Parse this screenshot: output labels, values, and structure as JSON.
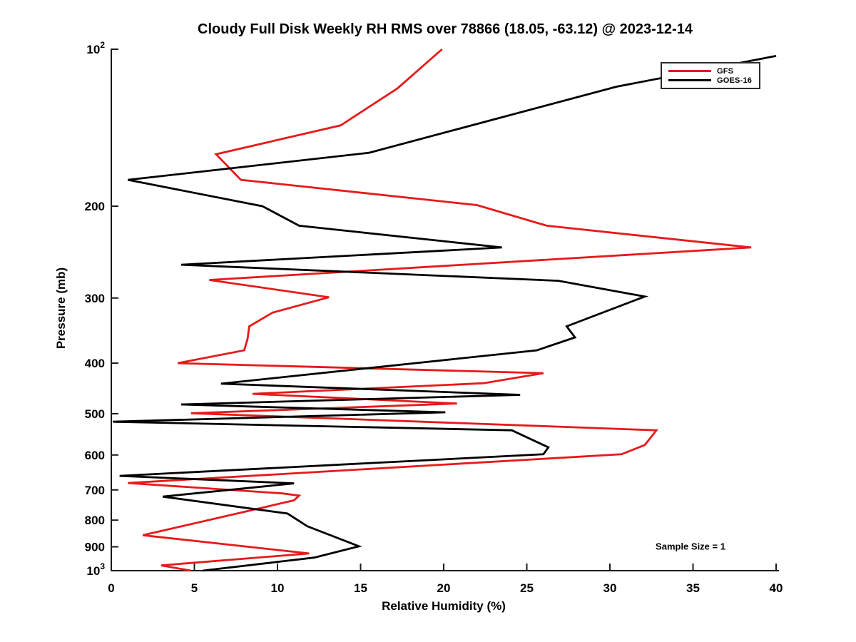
{
  "chart_data": {
    "type": "line",
    "title": "Cloudy Full Disk Weekly RH RMS over 78866 (18.05, -63.12) @ 2023-12-14",
    "xlabel": "Relative Humidity (%)",
    "ylabel": "Pressure (mb)",
    "xlim": [
      0,
      40
    ],
    "ylim": [
      100,
      1000
    ],
    "y_scale": "log",
    "y_axis_inverted": true,
    "grid": false,
    "x_ticks": [
      0,
      5,
      10,
      15,
      20,
      25,
      30,
      35,
      40
    ],
    "y_ticks": [
      {
        "v": 100,
        "label": "10^2"
      },
      {
        "v": 200,
        "label": "200"
      },
      {
        "v": 300,
        "label": "300"
      },
      {
        "v": 400,
        "label": "400"
      },
      {
        "v": 500,
        "label": "500"
      },
      {
        "v": 600,
        "label": "600"
      },
      {
        "v": 700,
        "label": "700"
      },
      {
        "v": 800,
        "label": "800"
      },
      {
        "v": 900,
        "label": "900"
      },
      {
        "v": 1000,
        "label": "10^3"
      }
    ],
    "legend": {
      "position": "upper right",
      "entries": [
        {
          "label": "GFS",
          "color": "#e61a1a"
        },
        {
          "label": "GOES-16",
          "color": "#000000"
        }
      ]
    },
    "annotation": {
      "text": "Sample Size = 1",
      "rh": 34.8,
      "pressure": 900
    },
    "series": [
      {
        "name": "GFS",
        "color": "#e61a1a",
        "points_rh_pressure": [
          [
            19.9,
            100
          ],
          [
            17.2,
            119
          ],
          [
            13.8,
            140
          ],
          [
            6.3,
            159
          ],
          [
            7.8,
            178
          ],
          [
            22.0,
            199
          ],
          [
            26.2,
            218
          ],
          [
            38.5,
            240
          ],
          [
            5.9,
            277
          ],
          [
            13.1,
            299
          ],
          [
            9.7,
            320
          ],
          [
            8.3,
            340
          ],
          [
            8.2,
            359
          ],
          [
            8.0,
            378
          ],
          [
            4.0,
            400
          ],
          [
            26.0,
            418
          ],
          [
            22.4,
            437
          ],
          [
            8.5,
            458
          ],
          [
            20.8,
            478
          ],
          [
            4.8,
            499
          ],
          [
            32.8,
            538
          ],
          [
            32.1,
            574
          ],
          [
            30.7,
            598
          ],
          [
            1.0,
            679
          ],
          [
            10.3,
            711
          ],
          [
            11.3,
            718
          ],
          [
            11.0,
            733
          ],
          [
            1.9,
            855
          ],
          [
            11.9,
            927
          ],
          [
            3.0,
            977
          ],
          [
            4.8,
            1000
          ]
        ]
      },
      {
        "name": "GOES-16",
        "color": "#000000",
        "points_rh_pressure": [
          [
            40.0,
            103
          ],
          [
            30.4,
            118
          ],
          [
            15.5,
            158
          ],
          [
            1.0,
            178
          ],
          [
            9.1,
            200
          ],
          [
            11.3,
            218
          ],
          [
            23.5,
            240
          ],
          [
            4.2,
            259
          ],
          [
            26.9,
            278
          ],
          [
            32.1,
            298
          ],
          [
            27.4,
            340
          ],
          [
            27.9,
            357
          ],
          [
            25.6,
            378
          ],
          [
            6.6,
            438
          ],
          [
            24.6,
            460
          ],
          [
            4.2,
            480
          ],
          [
            20.1,
            497
          ],
          [
            0.1,
            518
          ],
          [
            24.1,
            538
          ],
          [
            26.3,
            580
          ],
          [
            26.0,
            598
          ],
          [
            0.5,
            658
          ],
          [
            11.0,
            680
          ],
          [
            3.1,
            721
          ],
          [
            10.6,
            777
          ],
          [
            11.8,
            822
          ],
          [
            14.9,
            898
          ],
          [
            12.2,
            944
          ],
          [
            5.5,
            1000
          ]
        ]
      }
    ]
  }
}
